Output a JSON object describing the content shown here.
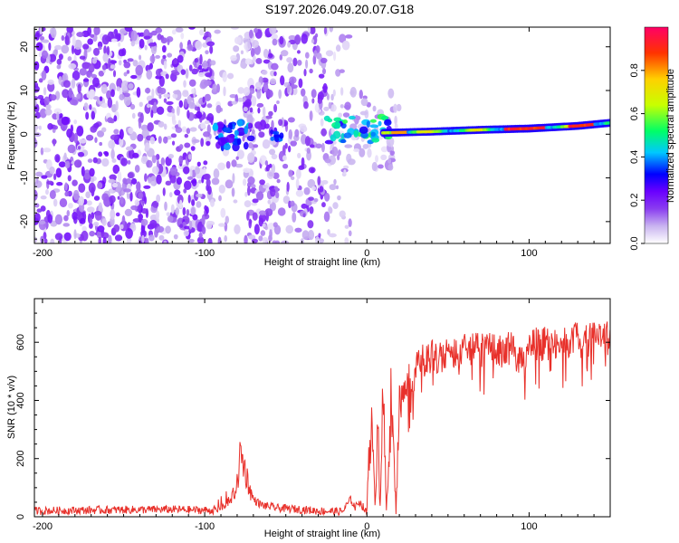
{
  "figure": {
    "title": "S197.2026.049.20.07.G18"
  },
  "chart_data": [
    {
      "type": "heatmap",
      "title": "S197.2026.049.20.07.G18",
      "xlabel": "Height of straight line (km)",
      "ylabel": "Frequency (Hz)",
      "xlim": [
        -205,
        150
      ],
      "ylim": [
        -25,
        24.5
      ],
      "xticks": [
        -200,
        -100,
        0,
        100
      ],
      "yticks": [
        -20,
        -10,
        0,
        10,
        20
      ],
      "colorbar": {
        "label": "Normalized spectral amplitude",
        "range": [
          0.0,
          1.0
        ],
        "ticks": [
          0.0,
          0.2,
          0.4,
          0.6,
          0.8
        ],
        "tick_labels": [
          "0.0",
          "0.2",
          "0.4",
          "0.6",
          "0.8"
        ],
        "colors": [
          "#ffffff",
          "#c9b4f0",
          "#8a3df0",
          "#6a00ff",
          "#0000ff",
          "#00c8ff",
          "#00ff66",
          "#c8ff00",
          "#ffd000",
          "#ff3300",
          "#ff0066"
        ]
      },
      "regions": [
        {
          "description_range_km": [
            -205,
            -95
          ],
          "kind": "noise",
          "amplitude_max": 0.12
        },
        {
          "description_range_km": [
            -95,
            -70
          ],
          "kind": "cluster",
          "center_hz": 0,
          "amplitude_max": 0.35
        },
        {
          "description_range_km": [
            -70,
            -25
          ],
          "kind": "noise",
          "amplitude_max": 0.12
        },
        {
          "description_range_km": [
            -25,
            15
          ],
          "kind": "cluster",
          "center_hz": 1,
          "amplitude_max": 0.55
        },
        {
          "description_range_km": [
            15,
            150
          ],
          "kind": "tone",
          "amplitude_max": 1.0
        }
      ],
      "tone_track_hz": [
        {
          "x": 10,
          "y": 0.3
        },
        {
          "x": 40,
          "y": 0.6
        },
        {
          "x": 70,
          "y": 1.0
        },
        {
          "x": 100,
          "y": 1.3
        },
        {
          "x": 130,
          "y": 1.9
        },
        {
          "x": 150,
          "y": 2.6
        }
      ]
    },
    {
      "type": "line",
      "title": "",
      "xlabel": "Height of straight line (km)",
      "ylabel": "SNR (10 * v/v)",
      "xlim": [
        -205,
        150
      ],
      "ylim": [
        0,
        750
      ],
      "xticks": [
        -200,
        -100,
        0,
        100
      ],
      "yticks": [
        0,
        200,
        400,
        600
      ],
      "series": [
        {
          "name": "SNR",
          "color": "#e8302a",
          "x": [
            -205,
            -180,
            -150,
            -120,
            -95,
            -85,
            -80,
            -78,
            -75,
            -72,
            -70,
            -65,
            -55,
            -40,
            -30,
            -15,
            -10,
            -7,
            -5,
            -2,
            0,
            1,
            3,
            5,
            7,
            8,
            10,
            12,
            15,
            18,
            20,
            25,
            30,
            35,
            40,
            50,
            60,
            70,
            80,
            90,
            95,
            100,
            110,
            120,
            125,
            130,
            140,
            150
          ],
          "y": [
            20,
            22,
            24,
            25,
            22,
            40,
            110,
            220,
            160,
            90,
            60,
            40,
            30,
            25,
            20,
            18,
            60,
            30,
            55,
            30,
            10,
            220,
            300,
            40,
            380,
            15,
            420,
            20,
            410,
            15,
            430,
            480,
            520,
            560,
            570,
            580,
            590,
            595,
            590,
            600,
            540,
            610,
            615,
            620,
            625,
            630,
            630,
            635
          ]
        }
      ]
    }
  ]
}
